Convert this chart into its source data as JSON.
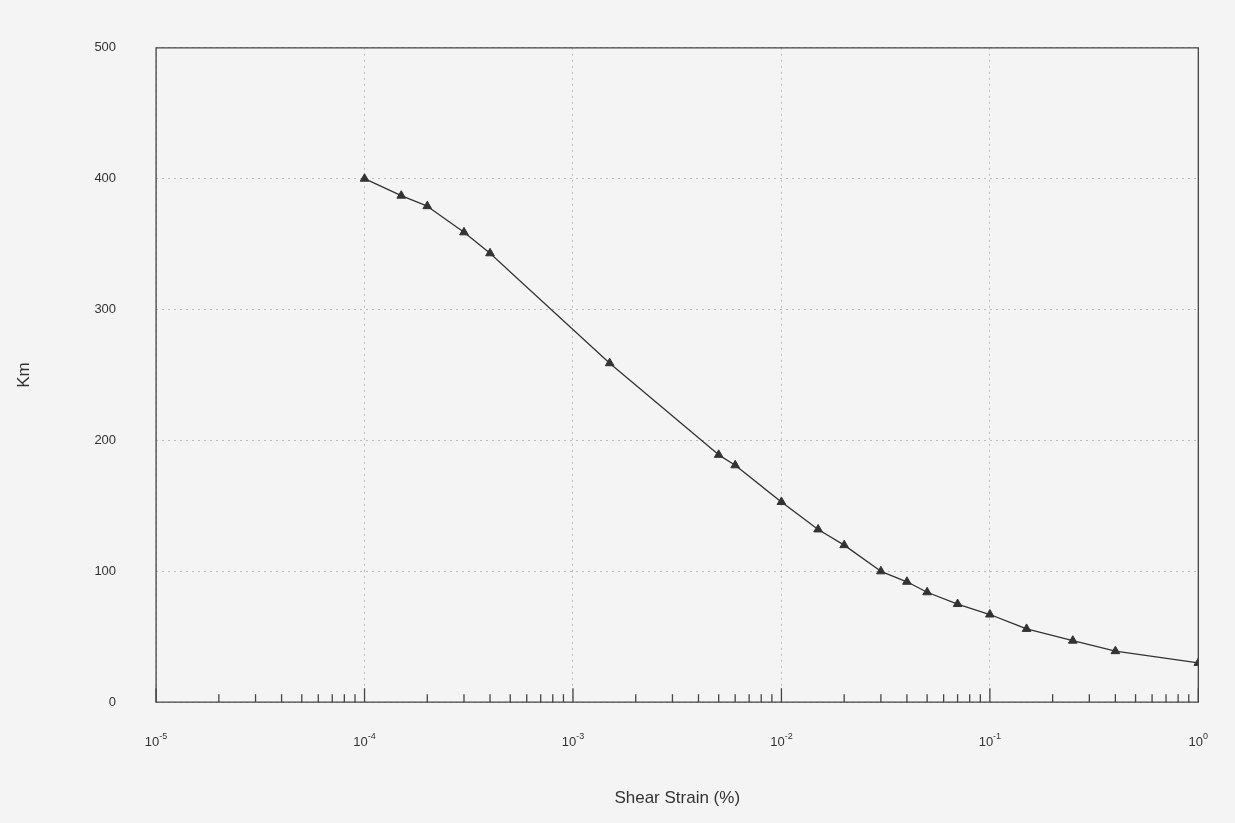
{
  "chart_data": {
    "type": "line",
    "xlabel": "Shear Strain (%)",
    "ylabel": "Km",
    "log": "x",
    "grid": true,
    "marker": "triangle",
    "line_style": "solid",
    "xlim": [
      1e-05,
      1
    ],
    "ylim": [
      0,
      500
    ],
    "yticks": [
      0,
      100,
      200,
      300,
      400,
      500
    ],
    "xticks": [
      {
        "value": 1e-05,
        "label": "10$^{-5}$"
      },
      {
        "value": 2e-05,
        "label": null
      },
      {
        "value": 3e-05,
        "label": null
      },
      {
        "value": 4e-05,
        "label": null
      },
      {
        "value": 5e-05,
        "label": null
      },
      {
        "value": 6e-05,
        "label": null
      },
      {
        "value": 7e-05,
        "label": null
      },
      {
        "value": 8e-05,
        "label": null
      },
      {
        "value": 9e-05,
        "label": null
      },
      {
        "value": 0.0001,
        "label": "10$^{-4}$"
      },
      {
        "value": 0.0002,
        "label": null
      },
      {
        "value": 0.0003,
        "label": null
      },
      {
        "value": 0.0004,
        "label": null
      },
      {
        "value": 0.0005,
        "label": null
      },
      {
        "value": 0.0006,
        "label": null
      },
      {
        "value": 0.0007,
        "label": null
      },
      {
        "value": 0.0008,
        "label": null
      },
      {
        "value": 0.0009,
        "label": null
      },
      {
        "value": 0.001,
        "label": "10$^{-3}$"
      },
      {
        "value": 0.002,
        "label": null
      },
      {
        "value": 0.003,
        "label": null
      },
      {
        "value": 0.004,
        "label": null
      },
      {
        "value": 0.005,
        "label": null
      },
      {
        "value": 0.006,
        "label": null
      },
      {
        "value": 0.007,
        "label": null
      },
      {
        "value": 0.008,
        "label": null
      },
      {
        "value": 0.009,
        "label": null
      },
      {
        "value": 0.01,
        "label": "10$^{-2}$"
      },
      {
        "value": 0.02,
        "label": null
      },
      {
        "value": 0.03,
        "label": null
      },
      {
        "value": 0.04,
        "label": null
      },
      {
        "value": 0.05,
        "label": null
      },
      {
        "value": 0.06,
        "label": null
      },
      {
        "value": 0.07,
        "label": null
      },
      {
        "value": 0.08,
        "label": null
      },
      {
        "value": 0.09,
        "label": null
      },
      {
        "value": 0.1,
        "label": "10$^{-1}$"
      },
      {
        "value": 0.2,
        "label": null
      },
      {
        "value": 0.3,
        "label": null
      },
      {
        "value": 0.4,
        "label": null
      },
      {
        "value": 0.5,
        "label": null
      },
      {
        "value": 0.6,
        "label": null
      },
      {
        "value": 0.7,
        "label": null
      },
      {
        "value": 0.8,
        "label": null
      },
      {
        "value": 0.9,
        "label": null
      },
      {
        "value": 1,
        "label": "10$^{0}$"
      }
    ],
    "x": [
      0.0001,
      0.00015,
      0.0002,
      0.0003,
      0.0004,
      0.0015,
      0.005,
      0.006,
      0.01,
      0.015,
      0.02,
      0.03,
      0.04,
      0.05,
      0.07,
      0.1,
      0.15,
      0.25,
      0.4,
      1
    ],
    "series": [
      {
        "color": "#333333",
        "values": [
          400,
          387,
          379,
          359,
          343,
          259,
          189,
          181,
          153,
          132,
          120,
          100,
          92,
          84,
          75,
          67,
          56,
          47,
          39,
          30
        ]
      }
    ]
  }
}
